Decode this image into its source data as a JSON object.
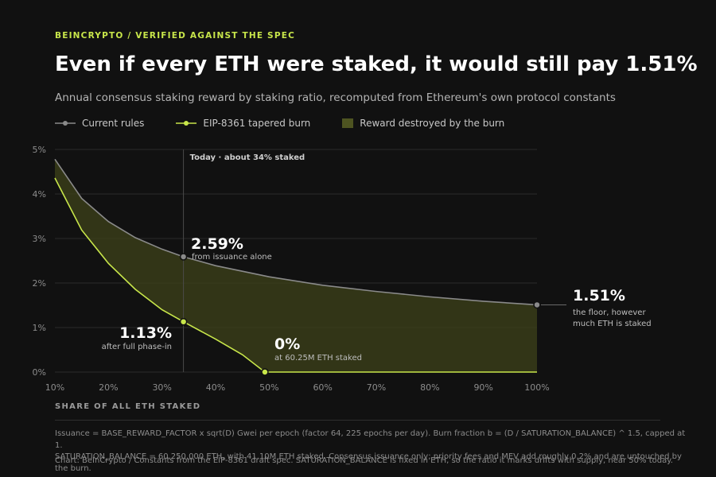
{
  "header": {
    "eyebrow": "BEINCRYPTO / VERIFIED AGAINST THE SPEC",
    "title": "Even if every ETH were staked, it would still pay 1.51%",
    "subtitle": "Annual consensus staking reward by staking ratio, recomputed from Ethereum's own protocol constants"
  },
  "legend": {
    "current": "Current rules",
    "burn": "EIP-8361 tapered burn",
    "destroyed": "Reward destroyed by the burn"
  },
  "colors": {
    "current": "#8a8a8a",
    "burn": "#c8e64a",
    "area": "#3d4219",
    "grid": "#2a2a2a",
    "axis_text": "#8c8c8c"
  },
  "chart_data": {
    "type": "line",
    "xlabel": "SHARE OF ALL ETH STAKED",
    "xlim": [
      10,
      100
    ],
    "ylim": [
      0,
      5
    ],
    "x_ticks": [
      "10%",
      "20%",
      "30%",
      "40%",
      "50%",
      "60%",
      "70%",
      "80%",
      "90%",
      "100%"
    ],
    "y_ticks": [
      "0%",
      "1%",
      "2%",
      "3%",
      "4%",
      "5%"
    ],
    "grid": true,
    "series": [
      {
        "name": "Current rules",
        "x": [
          10,
          15,
          20,
          25,
          30,
          34,
          40,
          50,
          60,
          70,
          80,
          90,
          100
        ],
        "values": [
          4.78,
          3.9,
          3.38,
          3.02,
          2.76,
          2.59,
          2.39,
          2.14,
          1.95,
          1.81,
          1.69,
          1.59,
          1.51
        ]
      },
      {
        "name": "EIP-8361 tapered burn",
        "x": [
          10,
          15,
          20,
          25,
          30,
          34,
          40,
          45,
          49.2,
          50,
          60,
          70,
          80,
          90,
          100
        ],
        "values": [
          4.36,
          3.19,
          2.44,
          1.86,
          1.4,
          1.13,
          0.74,
          0.39,
          0,
          0,
          0,
          0,
          0,
          0,
          0
        ]
      }
    ],
    "today_marker": {
      "x": 34,
      "label": "Today · about 34% staked"
    },
    "annotations": [
      {
        "x": 34,
        "y": 2.59,
        "value": "2.59%",
        "text": "from issuance alone"
      },
      {
        "x": 34,
        "y": 1.13,
        "value": "1.13%",
        "text": "after full phase-in"
      },
      {
        "x": 49.2,
        "y": 0,
        "value": "0%",
        "text": "at 60.25M ETH staked"
      },
      {
        "x": 100,
        "y": 1.51,
        "value": "1.51%",
        "text_line1": "the floor, however",
        "text_line2": "much ETH is staked"
      }
    ]
  },
  "footer": {
    "note_line1": "Issuance = BASE_REWARD_FACTOR x sqrt(D) Gwei per epoch (factor 64, 225 epochs per day). Burn fraction b = (D / SATURATION_BALANCE) ^ 1.5, capped at 1.",
    "note_line2": "SATURATION_BALANCE = 60,250,000 ETH, with 41.10M ETH staked. Consensus issuance only; priority fees and MEV add roughly 0.2% and are untouched by the burn.",
    "source": "Chart: BeInCrypto / Constants from the EIP-8361 draft spec. SATURATION_BALANCE is fixed in ETH, so the ratio it marks drifts with supply, near 50% today."
  }
}
